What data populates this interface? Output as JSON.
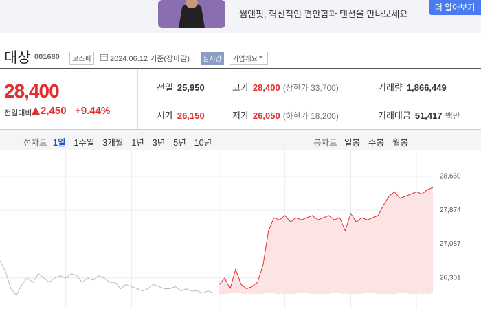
{
  "ad": {
    "text": "썸앤핏, 혁신적인 편안함과 텐션을 만나보세요",
    "button": "더 알아보기"
  },
  "header": {
    "name": "대상",
    "code": "001680",
    "market": "코스피",
    "date": "2024.06.12 기준(장마감)",
    "realtime": "실시간",
    "overview": "기업개요"
  },
  "quote": {
    "price": "28,400",
    "change_label": "전일대비",
    "change": "2,450",
    "rate": "+9.44%"
  },
  "stats": [
    [
      {
        "label": "전일",
        "value": "25,950"
      },
      {
        "label": "고가",
        "value": "28,400",
        "note": "(상한가 33,700)"
      },
      {
        "label": "거래량",
        "value": "1,866,449"
      }
    ],
    [
      {
        "label": "시가",
        "value": "26,150"
      },
      {
        "label": "저가",
        "value": "26,050",
        "note": "(하한가 18,200)"
      },
      {
        "label": "거래대금",
        "value": "51,417",
        "note": "백만"
      }
    ]
  ],
  "tabs": {
    "line_label": "선차트",
    "line": [
      "1일",
      "1주일",
      "3개월",
      "1년",
      "3년",
      "5년",
      "10년"
    ],
    "selected": 0,
    "candle_label": "봉차트",
    "candle": [
      "일봉",
      "주봉",
      "월봉"
    ]
  },
  "chart_data": {
    "type": "line",
    "x": [
      0,
      1,
      2,
      3,
      4,
      5,
      6,
      7,
      8,
      9,
      10,
      11,
      12,
      13,
      14,
      15,
      16,
      17,
      18,
      19,
      20,
      21,
      22,
      23,
      24,
      25,
      26,
      27,
      28,
      29,
      30,
      31,
      32,
      33,
      34,
      35,
      36,
      37,
      38,
      39,
      40,
      41,
      42,
      43,
      44,
      45,
      46,
      47,
      48,
      49,
      50,
      51,
      52,
      53,
      54,
      55,
      56,
      57,
      58,
      59,
      60,
      61,
      62,
      63,
      64,
      65,
      66,
      67,
      68,
      69,
      70,
      71,
      72,
      73,
      74,
      75,
      76,
      77,
      78,
      79
    ],
    "xlim": [
      0,
      79
    ],
    "xticks": [
      12,
      24,
      40,
      52,
      64,
      76
    ],
    "ylim": [
      25580,
      29280
    ],
    "yticks": [
      {
        "value": 26301,
        "label": "26,301"
      },
      {
        "value": 27087,
        "label": "27,087"
      },
      {
        "value": 27874,
        "label": "27,874"
      },
      {
        "value": 28660,
        "label": "28,660"
      }
    ],
    "grid": true,
    "baseline": 25950,
    "baseline_color": "#e22e2e",
    "series": [
      {
        "color": "#b8b8b8",
        "values": [
          26700,
          26450,
          26050,
          25900,
          26150,
          26300,
          26200,
          26400,
          26300,
          26200,
          26300,
          26350,
          26300,
          26400,
          26350,
          26200,
          26300,
          26250,
          26350,
          26300,
          26200,
          26200,
          26050,
          26150,
          26100,
          26050,
          26000,
          26050,
          26150,
          26100,
          26050,
          26050,
          26100,
          26000,
          26050,
          26000,
          26000,
          25950,
          26000,
          25950,
          null,
          null,
          null,
          null,
          null,
          null,
          null,
          null,
          null,
          null,
          null,
          null,
          null,
          null,
          null,
          null,
          null,
          null,
          null,
          null,
          null,
          null,
          null,
          null,
          null,
          null,
          null,
          null,
          null,
          null,
          null,
          null,
          null,
          null,
          null,
          null,
          null,
          null,
          null,
          null
        ]
      },
      {
        "color": "#e22e2e",
        "fill": "#fde4e4",
        "values": [
          null,
          null,
          null,
          null,
          null,
          null,
          null,
          null,
          null,
          null,
          null,
          null,
          null,
          null,
          null,
          null,
          null,
          null,
          null,
          null,
          null,
          null,
          null,
          null,
          null,
          null,
          null,
          null,
          null,
          null,
          null,
          null,
          null,
          null,
          null,
          null,
          null,
          null,
          null,
          null,
          26150,
          26300,
          26050,
          26500,
          26150,
          26050,
          26100,
          26200,
          26600,
          27400,
          27700,
          27650,
          27750,
          27600,
          27700,
          27650,
          27700,
          27750,
          27650,
          27700,
          27750,
          27650,
          27700,
          27400,
          27800,
          27600,
          27700,
          27650,
          27700,
          27750,
          28000,
          28200,
          28300,
          28150,
          28200,
          28250,
          28300,
          28250,
          28350,
          28400
        ]
      }
    ]
  }
}
